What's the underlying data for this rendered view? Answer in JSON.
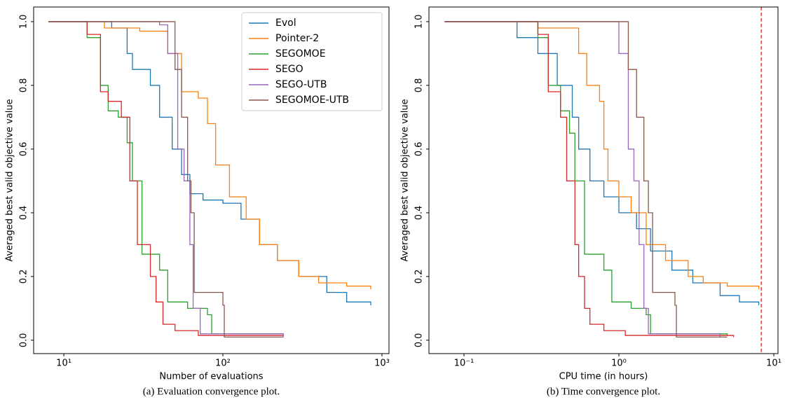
{
  "chart_data": [
    {
      "type": "line",
      "drawstyle": "steps-post",
      "xscale": "log",
      "legend": "upper right",
      "x_label": "Number of evaluations",
      "y_label": "Averaged best valid objective value",
      "caption": "(a) Evaluation convergence plot.",
      "xlim": [
        6.46,
        1107
      ],
      "xticks": [
        {
          "value": 10,
          "label": "10¹"
        },
        {
          "value": 100,
          "label": "10²"
        },
        {
          "value": 1000,
          "label": "10³"
        }
      ],
      "ylim": [
        -0.042,
        1.046
      ],
      "yticks": [
        {
          "value": 0,
          "label": "0.0"
        },
        0.2,
        0.4,
        0.6,
        0.8,
        {
          "value": 1,
          "label": "1.0"
        }
      ],
      "series": [
        {
          "name": "Evol",
          "color": "#1f77b4",
          "x": [
            8,
            20,
            25,
            27,
            35,
            40,
            48,
            55,
            62,
            75,
            100,
            130,
            170,
            220,
            300,
            450,
            600,
            850
          ],
          "values": [
            1.0,
            0.98,
            0.9,
            0.85,
            0.8,
            0.7,
            0.6,
            0.52,
            0.46,
            0.44,
            0.43,
            0.38,
            0.3,
            0.25,
            0.2,
            0.15,
            0.12,
            0.11
          ]
        },
        {
          "name": "Pointer-2",
          "color": "#ff7f0e",
          "x": [
            8,
            18,
            30,
            45,
            55,
            70,
            80,
            90,
            110,
            140,
            170,
            220,
            300,
            400,
            600,
            850
          ],
          "values": [
            1.0,
            0.98,
            0.97,
            0.9,
            0.78,
            0.76,
            0.68,
            0.55,
            0.45,
            0.38,
            0.3,
            0.25,
            0.2,
            0.18,
            0.17,
            0.16
          ]
        },
        {
          "name": "SEGOMOE",
          "color": "#2ca02c",
          "x": [
            8,
            14,
            17,
            19,
            22,
            25,
            27,
            31,
            40,
            45,
            60,
            80,
            85,
            240
          ],
          "values": [
            1.0,
            0.95,
            0.8,
            0.72,
            0.7,
            0.62,
            0.5,
            0.27,
            0.22,
            0.12,
            0.1,
            0.08,
            0.02,
            0.02
          ]
        },
        {
          "name": "SEGO",
          "color": "#d62728",
          "x": [
            8,
            14,
            17,
            19,
            23,
            26,
            29,
            35,
            38,
            42,
            50,
            70,
            240
          ],
          "values": [
            1.0,
            0.96,
            0.78,
            0.75,
            0.7,
            0.5,
            0.3,
            0.2,
            0.12,
            0.05,
            0.03,
            0.015,
            0.015
          ]
        },
        {
          "name": "SEGO-UTB",
          "color": "#9467bd",
          "x": [
            8,
            40,
            45,
            52,
            57,
            62,
            65,
            72,
            240
          ],
          "values": [
            1.0,
            0.99,
            0.9,
            0.6,
            0.5,
            0.3,
            0.1,
            0.02,
            0.01
          ]
        },
        {
          "name": "SEGOMOE-UTB",
          "color": "#8c564b",
          "x": [
            8,
            44,
            50,
            55,
            60,
            63,
            66,
            100,
            102,
            240
          ],
          "values": [
            1.0,
            1.0,
            0.85,
            0.7,
            0.5,
            0.4,
            0.15,
            0.11,
            0.01,
            0.01
          ]
        }
      ]
    },
    {
      "type": "line",
      "drawstyle": "steps-post",
      "xscale": "log",
      "x_label": "CPU time (in hours)",
      "y_label": "Averaged best valid objective value",
      "caption": "(b) Time convergence plot.",
      "xlim": [
        0.0594,
        10.64
      ],
      "xticks": [
        {
          "value": 0.1,
          "label": "10⁻¹"
        },
        {
          "value": 1,
          "label": "10⁰"
        },
        {
          "value": 10,
          "label": "10¹"
        }
      ],
      "ylim": [
        -0.042,
        1.046
      ],
      "yticks": [
        {
          "value": 0,
          "label": "0.0"
        },
        0.2,
        0.4,
        0.6,
        0.8,
        {
          "value": 1,
          "label": "1.0"
        }
      ],
      "vline": {
        "x": 8.3,
        "color": "#d62728"
      },
      "series": [
        {
          "name": "Evol",
          "color": "#1f77b4",
          "x": [
            0.075,
            0.22,
            0.3,
            0.4,
            0.5,
            0.55,
            0.65,
            0.8,
            1.0,
            1.3,
            1.6,
            2.2,
            3.0,
            4.5,
            6,
            8
          ],
          "values": [
            1.0,
            0.95,
            0.9,
            0.8,
            0.7,
            0.6,
            0.5,
            0.45,
            0.4,
            0.35,
            0.28,
            0.22,
            0.18,
            0.14,
            0.12,
            0.11
          ]
        },
        {
          "name": "Pointer-2",
          "color": "#ff7f0e",
          "x": [
            0.075,
            0.3,
            0.55,
            0.62,
            0.75,
            0.8,
            0.85,
            1.0,
            1.2,
            1.5,
            2,
            2.8,
            3.5,
            5,
            8
          ],
          "values": [
            1.0,
            0.98,
            0.9,
            0.8,
            0.75,
            0.6,
            0.5,
            0.45,
            0.4,
            0.3,
            0.25,
            0.2,
            0.18,
            0.17,
            0.16
          ]
        },
        {
          "name": "SEGOMOE",
          "color": "#2ca02c",
          "x": [
            0.075,
            0.3,
            0.35,
            0.42,
            0.48,
            0.52,
            0.6,
            0.8,
            0.9,
            1.2,
            1.5,
            1.6,
            5
          ],
          "values": [
            1.0,
            0.95,
            0.8,
            0.72,
            0.65,
            0.5,
            0.27,
            0.22,
            0.12,
            0.1,
            0.08,
            0.02,
            0.015
          ]
        },
        {
          "name": "SEGO",
          "color": "#d62728",
          "x": [
            0.075,
            0.3,
            0.35,
            0.42,
            0.46,
            0.52,
            0.55,
            0.6,
            0.65,
            0.8,
            1.1,
            5.5
          ],
          "values": [
            1.0,
            0.96,
            0.78,
            0.7,
            0.5,
            0.3,
            0.2,
            0.1,
            0.05,
            0.03,
            0.015,
            0.01
          ]
        },
        {
          "name": "SEGO-UTB",
          "color": "#9467bd",
          "x": [
            0.075,
            0.95,
            1.0,
            1.15,
            1.25,
            1.35,
            1.45,
            1.55,
            4.5
          ],
          "values": [
            1.0,
            1.0,
            0.9,
            0.6,
            0.5,
            0.3,
            0.1,
            0.02,
            0.01
          ]
        },
        {
          "name": "SEGOMOE-UTB",
          "color": "#8c564b",
          "x": [
            0.075,
            1.05,
            1.15,
            1.3,
            1.45,
            1.55,
            1.65,
            2.3,
            2.35,
            5
          ],
          "values": [
            1.0,
            1.0,
            0.85,
            0.7,
            0.5,
            0.4,
            0.15,
            0.11,
            0.01,
            0.01
          ]
        }
      ]
    }
  ]
}
